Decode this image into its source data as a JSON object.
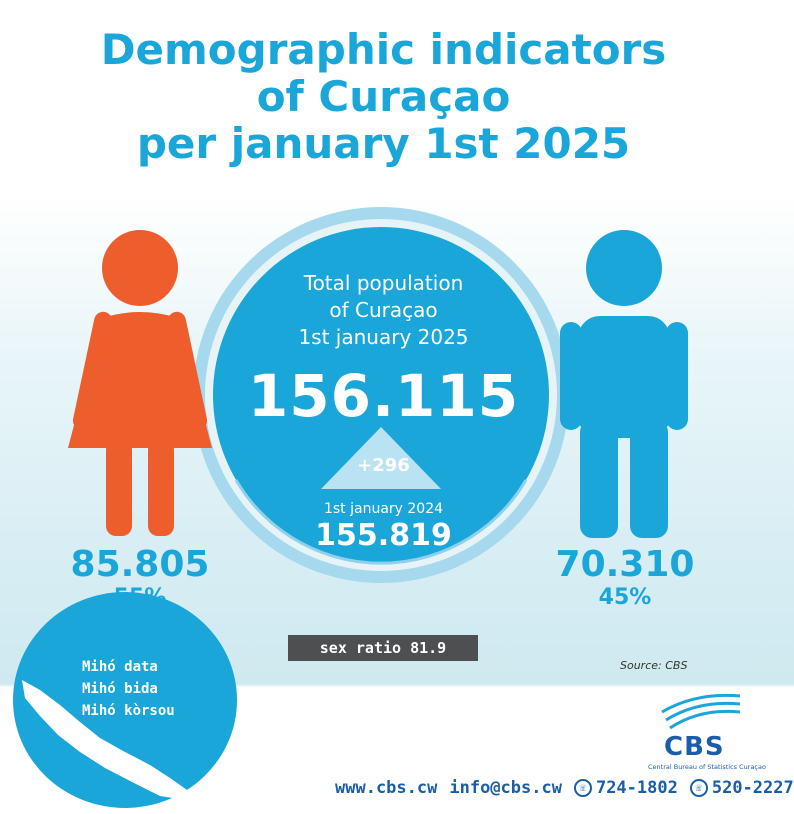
{
  "title": {
    "line1": "Demographic indicators",
    "line2": "of Curaçao",
    "line3": "per january 1st 2025"
  },
  "center": {
    "label_line1": "Total population",
    "label_line2": "of Curaçao",
    "label_line3": "1st january 2025",
    "total": "156.115",
    "change": "+296",
    "prev_label": "1st january 2024",
    "prev_total": "155.819"
  },
  "female": {
    "count": "85.805",
    "percent": "55%",
    "color": "#ee5d2c"
  },
  "male": {
    "count": "70.310",
    "percent": "45%",
    "color": "#1aa6d9"
  },
  "sex_ratio": "sex ratio 81.9",
  "source": "Source: CBS",
  "badge": {
    "line1": "Mihó data",
    "line2": "Mihó bida",
    "line3": "Mihó kòrsou"
  },
  "logo": {
    "name": "CBS",
    "subtitle": "Central Bureau of Statistics Curaçao"
  },
  "footer": {
    "website": "www.cbs.cw",
    "email": "info@cbs.cw",
    "phone1": "724-1802",
    "phone2": "520-2227"
  },
  "colors": {
    "accent": "#1aa6d9",
    "female": "#ee5d2c",
    "ring": "#8fd1ec",
    "dark_bar": "#4d4f51",
    "brand": "#1a5da8"
  }
}
